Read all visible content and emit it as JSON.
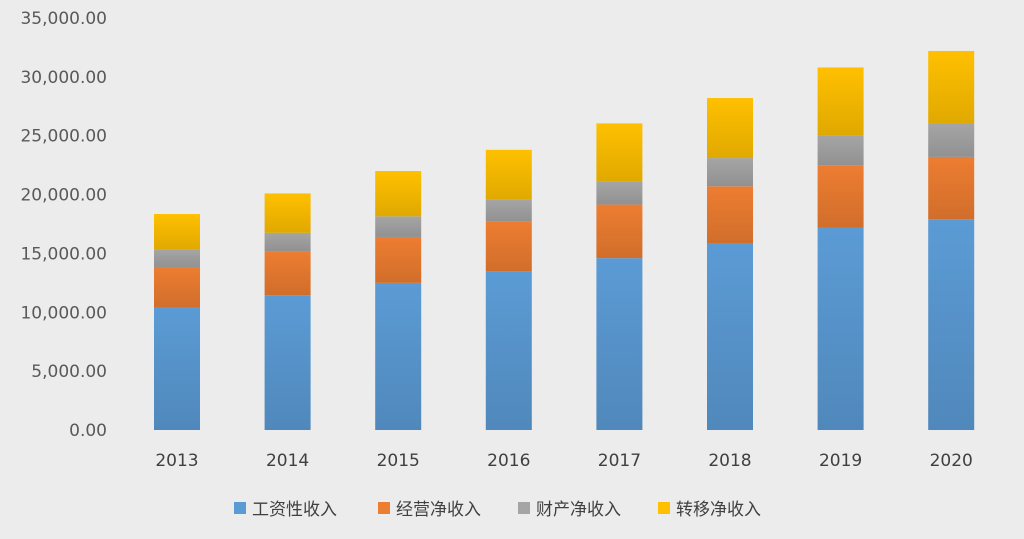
{
  "chart_data": {
    "type": "bar",
    "stacked": true,
    "title": "",
    "xlabel": "",
    "ylabel": "",
    "categories": [
      "2013",
      "2014",
      "2015",
      "2016",
      "2017",
      "2018",
      "2019",
      "2020"
    ],
    "ylim": [
      0,
      35000
    ],
    "yticks": [
      "0.00",
      "5,000.00",
      "10,000.00",
      "15,000.00",
      "20,000.00",
      "25,000.00",
      "30,000.00",
      "35,000.00"
    ],
    "grid": false,
    "legend_position": "bottom",
    "series": [
      {
        "name": "工资性收入",
        "color": "#5b9bd5",
        "values": [
          10400,
          11450,
          12500,
          13500,
          14600,
          15850,
          17200,
          17900
        ]
      },
      {
        "name": "经营净收入",
        "color": "#ed7d31",
        "values": [
          3450,
          3750,
          3900,
          4200,
          4550,
          4850,
          5250,
          5300
        ]
      },
      {
        "name": "财产净收入",
        "color": "#a5a5a5",
        "values": [
          1450,
          1550,
          1750,
          1850,
          1950,
          2400,
          2600,
          2800
        ]
      },
      {
        "name": "转移净收入",
        "color": "#ffc000",
        "values": [
          3050,
          3350,
          3850,
          4250,
          4950,
          5100,
          5750,
          6200
        ]
      }
    ]
  }
}
